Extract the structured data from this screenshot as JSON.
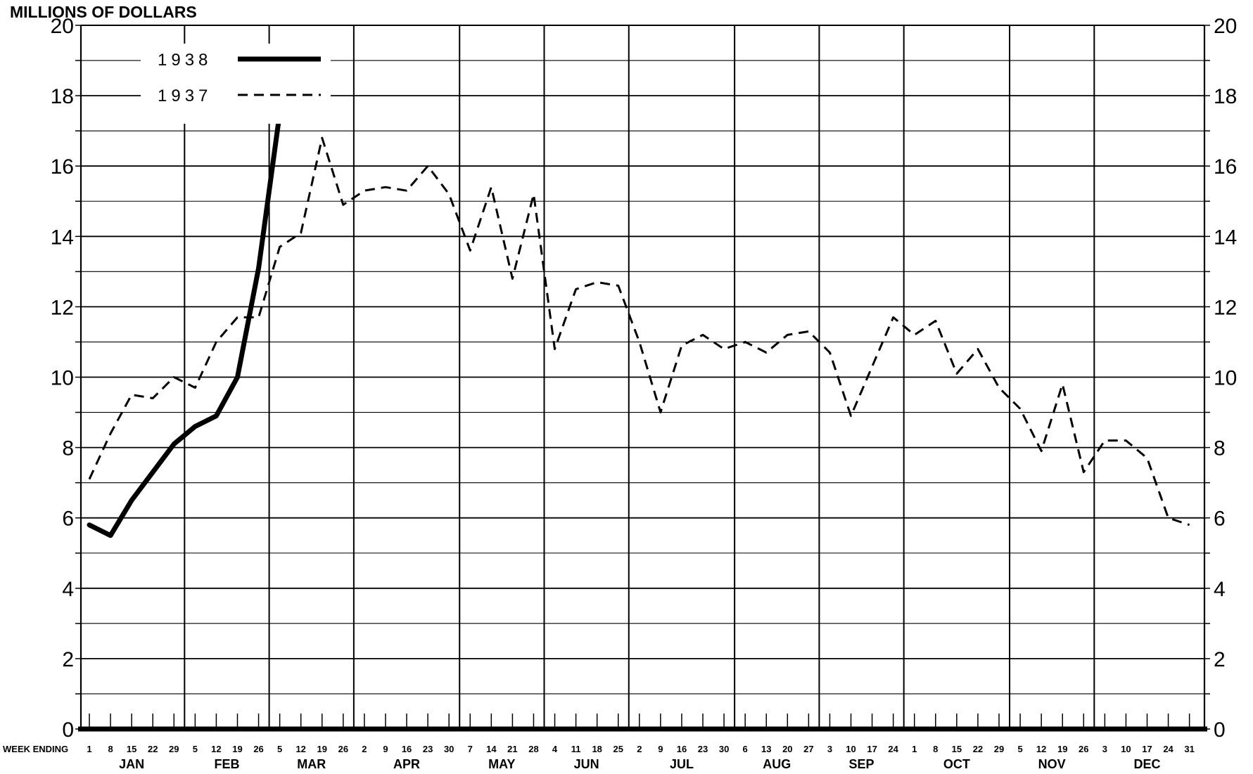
{
  "chart_data": {
    "type": "line",
    "ylabel": "MILLIONS OF DOLLARS",
    "xlabel": "WEEK ENDING",
    "ylim": [
      0,
      20
    ],
    "y_ticks": [
      "0",
      "2",
      "4",
      "6",
      "8",
      "10",
      "12",
      "14",
      "16",
      "18",
      "20"
    ],
    "grid": true,
    "legend_placement": "top-left",
    "week_labels": [
      "1",
      "8",
      "15",
      "22",
      "29",
      "5",
      "12",
      "19",
      "26",
      "5",
      "12",
      "19",
      "26",
      "2",
      "9",
      "16",
      "23",
      "30",
      "7",
      "14",
      "21",
      "28",
      "4",
      "11",
      "18",
      "25",
      "2",
      "9",
      "16",
      "23",
      "30",
      "6",
      "13",
      "20",
      "27",
      "3",
      "10",
      "17",
      "24",
      "1",
      "8",
      "15",
      "22",
      "29",
      "5",
      "12",
      "19",
      "26",
      "3",
      "10",
      "17",
      "24",
      "31"
    ],
    "months": [
      {
        "name": "JAN",
        "from": 0,
        "to": 4
      },
      {
        "name": "FEB",
        "from": 5,
        "to": 8
      },
      {
        "name": "MAR",
        "from": 9,
        "to": 12
      },
      {
        "name": "APR",
        "from": 13,
        "to": 17
      },
      {
        "name": "MAY",
        "from": 18,
        "to": 21
      },
      {
        "name": "JUN",
        "from": 22,
        "to": 25
      },
      {
        "name": "JUL",
        "from": 26,
        "to": 30
      },
      {
        "name": "AUG",
        "from": 31,
        "to": 34
      },
      {
        "name": "SEP",
        "from": 35,
        "to": 38
      },
      {
        "name": "OCT",
        "from": 39,
        "to": 43
      },
      {
        "name": "NOV",
        "from": 44,
        "to": 47
      },
      {
        "name": "DEC",
        "from": 48,
        "to": 52
      }
    ],
    "series": [
      {
        "name": "1938",
        "style": "solid",
        "color": "#000000",
        "values": [
          5.8,
          5.5,
          6.5,
          7.3,
          8.1,
          8.6,
          8.9,
          10.0,
          13.1,
          17.5
        ]
      },
      {
        "name": "1937",
        "style": "dashed",
        "color": "#000000",
        "values": [
          7.1,
          8.4,
          9.5,
          9.4,
          10.0,
          9.7,
          11.0,
          11.7,
          11.7,
          13.7,
          14.1,
          16.8,
          14.9,
          15.3,
          15.4,
          15.3,
          16.0,
          15.2,
          13.6,
          15.4,
          12.8,
          15.2,
          10.8,
          12.5,
          12.7,
          12.6,
          11.0,
          9.0,
          10.9,
          11.2,
          10.8,
          11.0,
          10.7,
          11.2,
          11.3,
          10.7,
          8.9,
          10.3,
          11.7,
          11.2,
          11.6,
          10.1,
          10.8,
          9.7,
          9.1,
          7.9,
          9.8,
          7.3,
          8.2,
          8.2,
          7.7,
          6.0,
          5.8
        ]
      }
    ]
  }
}
